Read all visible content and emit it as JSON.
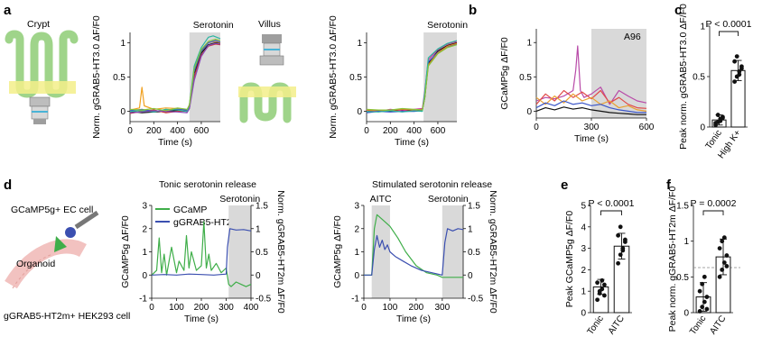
{
  "colors": {
    "ink": "#111111",
    "shade": "#d9d9d9",
    "gcamp": "#3fae49",
    "ggrab": "#3b4fb0",
    "band": "#f3ee8a",
    "tissue": "#9fd48a",
    "cell": "#8fd6cc",
    "dots": "#111111",
    "bars": "#ffffff"
  },
  "panels": {
    "a": {
      "letter": "a",
      "crypt_label": "Crypt",
      "villus_label": "Villus",
      "left": {
        "ylabel": "Norm. gGRAB5-HT3.0 ΔF/F0",
        "annotation": "Serotonin"
      },
      "right": {
        "ylabel": "Norm. gGRAB5-HT3.0 ΔF/F0",
        "annotation": "Serotonin"
      }
    },
    "b": {
      "letter": "b",
      "annotation": "A96"
    },
    "c": {
      "letter": "c",
      "pvalue": "P < 0.0001"
    },
    "d": {
      "letter": "d",
      "schematic": {
        "ec_cell": "GCaMP5g+ EC cell",
        "organoid": "Organoid",
        "hek": "gGRAB5-HT2m+ HEK293 cell"
      },
      "left_title": "Tonic serotonin release",
      "right_title": "Stimulated serotonin release",
      "legend": [
        "GCaMP",
        "gGRAB5-HT2m"
      ],
      "left_annotation": "Serotonin",
      "right_annotations": [
        "AITC",
        "Serotonin"
      ]
    },
    "e": {
      "letter": "e",
      "pvalue": "P < 0.0001"
    },
    "f": {
      "letter": "f",
      "pvalue": "P = 0.0002"
    }
  },
  "chart_data": [
    {
      "id": "a-left",
      "type": "line",
      "xlabel": "Time (s)",
      "ylabel": "Norm. gGRAB5-HT3.0 ΔF/F0",
      "xlim": [
        0,
        760
      ],
      "ylim": [
        -0.15,
        1.15
      ],
      "xticks": [
        0,
        200,
        400,
        600
      ],
      "yticks": [
        0,
        0.5,
        1.0
      ],
      "shade": [
        [
          500,
          760
        ]
      ],
      "annotation": "Serotonin",
      "series": [
        {
          "name": "cell 1",
          "color": "#111111",
          "x": [
            0,
            100,
            200,
            300,
            400,
            480,
            500,
            540,
            600,
            660,
            720,
            760
          ],
          "y": [
            0.0,
            -0.02,
            -0.01,
            0.0,
            0.01,
            0.0,
            0.05,
            0.55,
            0.85,
            0.97,
            1.0,
            0.99
          ]
        },
        {
          "name": "cell 2",
          "color": "#f0a020",
          "x": [
            0,
            80,
            100,
            120,
            200,
            300,
            400,
            480,
            500,
            540,
            600,
            660,
            720,
            760
          ],
          "y": [
            0.02,
            0.05,
            0.35,
            0.08,
            0.03,
            0.05,
            0.04,
            0.02,
            0.1,
            0.6,
            0.9,
            1.0,
            1.02,
            1.0
          ]
        },
        {
          "name": "cell 3",
          "color": "#cc3333",
          "x": [
            0,
            100,
            200,
            300,
            400,
            480,
            500,
            540,
            600,
            660,
            720,
            760
          ],
          "y": [
            -0.03,
            0.0,
            0.02,
            -0.02,
            0.0,
            0.01,
            0.08,
            0.5,
            0.82,
            0.95,
            0.98,
            0.97
          ]
        },
        {
          "name": "cell 4",
          "color": "#3a55c8",
          "x": [
            0,
            100,
            200,
            300,
            400,
            480,
            500,
            540,
            600,
            660,
            720,
            760
          ],
          "y": [
            0.01,
            0.03,
            0.0,
            0.02,
            0.03,
            0.02,
            0.06,
            0.58,
            0.88,
            1.0,
            1.03,
            1.01
          ]
        },
        {
          "name": "cell 5",
          "color": "#2bb5a0",
          "x": [
            0,
            100,
            200,
            300,
            400,
            480,
            500,
            540,
            600,
            660,
            700,
            760
          ],
          "y": [
            0.0,
            0.01,
            -0.01,
            0.03,
            0.02,
            0.0,
            0.1,
            0.66,
            0.93,
            1.08,
            1.1,
            1.06
          ]
        },
        {
          "name": "cell 6",
          "color": "#8a4bb8",
          "x": [
            0,
            100,
            200,
            300,
            400,
            480,
            500,
            540,
            600,
            660,
            720,
            760
          ],
          "y": [
            -0.02,
            -0.01,
            0.01,
            0.0,
            -0.01,
            -0.02,
            0.04,
            0.45,
            0.8,
            0.96,
            0.99,
            0.98
          ]
        },
        {
          "name": "cell 7",
          "color": "#88c43a",
          "x": [
            0,
            100,
            200,
            300,
            400,
            480,
            500,
            540,
            600,
            660,
            720,
            760
          ],
          "y": [
            0.03,
            0.02,
            0.04,
            0.01,
            0.05,
            0.03,
            0.09,
            0.62,
            0.9,
            1.02,
            1.05,
            1.03
          ]
        }
      ]
    },
    {
      "id": "a-right",
      "type": "line",
      "xlabel": "Time (s)",
      "ylabel": "Norm. gGRAB5-HT3.0 ΔF/F0",
      "xlim": [
        0,
        760
      ],
      "ylim": [
        -0.15,
        1.15
      ],
      "xticks": [
        0,
        200,
        400,
        600
      ],
      "yticks": [
        0,
        0.5,
        1.0
      ],
      "shade": [
        [
          480,
          760
        ]
      ],
      "annotation": "Serotonin",
      "series": [
        {
          "name": "cell 1",
          "color": "#111111",
          "x": [
            0,
            100,
            200,
            300,
            400,
            470,
            490,
            520,
            600,
            680,
            760
          ],
          "y": [
            0.0,
            0.01,
            0.0,
            0.02,
            0.01,
            0.02,
            0.2,
            0.7,
            0.88,
            0.96,
            1.0
          ]
        },
        {
          "name": "cell 2",
          "color": "#cc3399",
          "x": [
            0,
            100,
            200,
            300,
            400,
            470,
            490,
            520,
            600,
            680,
            760
          ],
          "y": [
            0.02,
            0.0,
            0.03,
            0.01,
            0.03,
            0.04,
            0.3,
            0.75,
            0.9,
            0.98,
            1.02
          ]
        },
        {
          "name": "cell 3",
          "color": "#3a55c8",
          "x": [
            0,
            100,
            200,
            300,
            400,
            470,
            490,
            520,
            600,
            680,
            760
          ],
          "y": [
            -0.02,
            0.0,
            -0.01,
            0.0,
            0.0,
            0.01,
            0.25,
            0.72,
            0.86,
            0.94,
            0.98
          ]
        },
        {
          "name": "cell 4",
          "color": "#e07a20",
          "x": [
            0,
            100,
            200,
            300,
            400,
            470,
            490,
            520,
            600,
            680,
            760
          ],
          "y": [
            0.01,
            0.02,
            0.01,
            0.03,
            0.02,
            0.03,
            0.22,
            0.68,
            0.85,
            0.95,
            0.99
          ]
        },
        {
          "name": "cell 5",
          "color": "#2bb5a0",
          "x": [
            0,
            100,
            200,
            300,
            400,
            470,
            490,
            520,
            600,
            680,
            760
          ],
          "y": [
            0.0,
            -0.01,
            0.01,
            -0.01,
            0.01,
            0.0,
            0.28,
            0.78,
            0.91,
            0.99,
            1.03
          ]
        },
        {
          "name": "cell 6",
          "color": "#88c43a",
          "x": [
            0,
            100,
            200,
            300,
            400,
            470,
            490,
            520,
            600,
            680,
            760
          ],
          "y": [
            0.03,
            0.02,
            0.02,
            0.04,
            0.03,
            0.02,
            0.2,
            0.66,
            0.84,
            0.93,
            0.97
          ]
        }
      ]
    },
    {
      "id": "b",
      "type": "line",
      "xlabel": "Time (s)",
      "ylabel": "GCaMP5g ΔF/F0",
      "xlim": [
        0,
        600
      ],
      "ylim": [
        -0.1,
        1.2
      ],
      "xticks": [
        0,
        300,
        600
      ],
      "yticks": [
        0,
        0.5,
        1.0
      ],
      "shade": [
        [
          300,
          600
        ]
      ],
      "annotation": "A96",
      "series": [
        {
          "name": "cell 1",
          "color": "#b84aa8",
          "x": [
            0,
            50,
            100,
            150,
            200,
            215,
            225,
            240,
            260,
            300,
            350,
            400,
            450,
            500,
            550,
            600
          ],
          "y": [
            0.15,
            0.2,
            0.18,
            0.22,
            0.3,
            0.6,
            0.95,
            0.3,
            0.2,
            0.25,
            0.35,
            0.1,
            0.3,
            0.22,
            0.15,
            0.12
          ]
        },
        {
          "name": "cell 2",
          "color": "#e04a4a",
          "x": [
            0,
            50,
            100,
            150,
            200,
            250,
            300,
            350,
            400,
            450,
            500,
            550,
            600
          ],
          "y": [
            0.1,
            0.25,
            0.15,
            0.3,
            0.2,
            0.28,
            0.18,
            0.3,
            0.12,
            0.2,
            0.1,
            0.05,
            0.04
          ]
        },
        {
          "name": "cell 3",
          "color": "#e8a030",
          "x": [
            0,
            50,
            100,
            150,
            200,
            250,
            300,
            350,
            400,
            450,
            500,
            550,
            600
          ],
          "y": [
            0.2,
            0.1,
            0.22,
            0.12,
            0.25,
            0.15,
            0.2,
            0.1,
            0.15,
            0.05,
            0.08,
            0.02,
            0.0
          ]
        },
        {
          "name": "cell 4",
          "color": "#3a55c8",
          "x": [
            0,
            50,
            100,
            150,
            200,
            250,
            300,
            350,
            400,
            450,
            500,
            550,
            600
          ],
          "y": [
            0.05,
            0.12,
            0.08,
            0.15,
            0.1,
            0.12,
            0.08,
            0.1,
            0.05,
            0.02,
            0.0,
            -0.02,
            -0.02
          ]
        },
        {
          "name": "cell 5",
          "color": "#111111",
          "x": [
            0,
            50,
            100,
            150,
            200,
            250,
            300,
            350,
            400,
            450,
            500,
            550,
            600
          ],
          "y": [
            0.0,
            0.05,
            0.02,
            0.06,
            0.03,
            0.05,
            0.02,
            0.0,
            -0.02,
            -0.03,
            -0.04,
            -0.05,
            -0.05
          ]
        }
      ]
    },
    {
      "id": "c",
      "type": "bar",
      "ylabel": "Peak norm. gGRAB5-HT3.0 ΔF/F0",
      "categories": [
        "Tonic",
        "High K+"
      ],
      "values": [
        0.07,
        0.56
      ],
      "errors": [
        0.05,
        0.1
      ],
      "ylim": [
        0,
        1.0
      ],
      "yticks": [
        0,
        0.5,
        1.0
      ],
      "points": [
        [
          0.02,
          0.05,
          0.08,
          0.1,
          0.04,
          0.12,
          0.06,
          0.09
        ],
        [
          0.45,
          0.5,
          0.55,
          0.6,
          0.65,
          0.7,
          0.52,
          0.58
        ]
      ],
      "pvalue": "P < 0.0001"
    },
    {
      "id": "d-left",
      "type": "line",
      "title": "Tonic serotonin release",
      "xlabel": "Time (s)",
      "ylabel": "GCaMP5g ΔF/F0",
      "y2label": "Norm. gGRAB5-HT2m ΔF/F0",
      "xlim": [
        0,
        400
      ],
      "ylim": [
        -1,
        3
      ],
      "y2lim": [
        -0.5,
        1.5
      ],
      "xticks": [
        0,
        100,
        200,
        300,
        400
      ],
      "yticks": [
        -1,
        0,
        1,
        2,
        3
      ],
      "y2ticks": [
        -0.5,
        0,
        0.5,
        1.0,
        1.5
      ],
      "shade": [
        [
          310,
          400
        ]
      ],
      "annotation": "Serotonin",
      "legend": [
        "GCaMP",
        "gGRAB5-HT2m"
      ],
      "series": [
        {
          "name": "GCaMP",
          "color": "#3fae49",
          "axis": "left",
          "x": [
            0,
            20,
            30,
            40,
            50,
            60,
            80,
            100,
            110,
            130,
            140,
            150,
            160,
            180,
            200,
            210,
            220,
            230,
            240,
            260,
            280,
            300,
            310,
            320,
            340,
            360,
            380,
            400
          ],
          "y": [
            0.0,
            0.2,
            1.6,
            0.1,
            0.9,
            0.0,
            1.2,
            0.1,
            0.6,
            0.2,
            1.7,
            0.3,
            1.0,
            0.2,
            0.4,
            2.3,
            0.3,
            0.9,
            0.2,
            0.5,
            0.1,
            0.3,
            -0.4,
            -0.5,
            -0.3,
            -0.4,
            -0.5,
            -0.4
          ]
        },
        {
          "name": "gGRAB5-HT2m",
          "color": "#3b4fb0",
          "axis": "right",
          "x": [
            0,
            50,
            100,
            150,
            200,
            250,
            300,
            305,
            315,
            340,
            370,
            400
          ],
          "y": [
            0.0,
            0.01,
            0.0,
            0.02,
            0.01,
            0.0,
            0.02,
            0.6,
            1.0,
            0.97,
            0.98,
            0.95
          ]
        }
      ]
    },
    {
      "id": "d-right",
      "type": "line",
      "title": "Stimulated serotonin release",
      "xlabel": "Time (s)",
      "ylabel": "GCaMP5g ΔF/F0",
      "y2label": "Norm. gGRAB5-HT2m ΔF/F0",
      "xlim": [
        0,
        380
      ],
      "ylim": [
        -1,
        3
      ],
      "y2lim": [
        -0.5,
        1.5
      ],
      "xticks": [
        0,
        100,
        200,
        300
      ],
      "yticks": [
        -1,
        0,
        1,
        2,
        3
      ],
      "y2ticks": [
        -0.5,
        0,
        0.5,
        1.0,
        1.5
      ],
      "shade": [
        [
          30,
          100
        ],
        [
          300,
          380
        ]
      ],
      "annotations": [
        "AITC",
        "Serotonin"
      ],
      "series": [
        {
          "name": "GCaMP",
          "color": "#3fae49",
          "axis": "left",
          "x": [
            0,
            30,
            40,
            50,
            70,
            100,
            130,
            160,
            200,
            240,
            280,
            300,
            340,
            380
          ],
          "y": [
            0.0,
            0.0,
            2.0,
            2.6,
            2.4,
            2.1,
            1.6,
            1.0,
            0.4,
            0.1,
            0.0,
            -0.1,
            -0.1,
            -0.1
          ]
        },
        {
          "name": "gGRAB5-HT2m",
          "color": "#3b4fb0",
          "axis": "right",
          "x": [
            0,
            30,
            40,
            50,
            60,
            70,
            80,
            90,
            100,
            120,
            150,
            180,
            220,
            260,
            300,
            310,
            320,
            340,
            360,
            380
          ],
          "y": [
            0.0,
            0.0,
            0.55,
            0.85,
            0.6,
            0.75,
            0.55,
            0.65,
            0.5,
            0.4,
            0.3,
            0.2,
            0.1,
            0.05,
            0.0,
            0.7,
            1.0,
            0.95,
            1.0,
            0.98
          ]
        }
      ]
    },
    {
      "id": "e",
      "type": "bar",
      "ylabel": "Peak GCaMP5g ΔF/F0",
      "categories": [
        "Tonic",
        "AITC"
      ],
      "values": [
        1.2,
        3.1
      ],
      "errors": [
        0.35,
        0.6
      ],
      "ylim": [
        0,
        5
      ],
      "yticks": [
        0,
        1,
        2,
        3,
        4,
        5
      ],
      "points": [
        [
          0.6,
          0.9,
          1.1,
          1.3,
          1.4,
          1.0,
          1.5,
          0.8
        ],
        [
          2.3,
          2.7,
          3.0,
          3.3,
          3.6,
          4.0,
          2.9,
          3.4
        ]
      ],
      "pvalue": "P < 0.0001"
    },
    {
      "id": "f",
      "type": "bar",
      "ylabel": "Peak norm. gGRAB5-HT2m ΔF/F0",
      "categories": [
        "Tonic",
        "AITC"
      ],
      "values": [
        0.22,
        0.78
      ],
      "errors": [
        0.2,
        0.25
      ],
      "ylim": [
        0,
        1.5
      ],
      "yticks": [
        0,
        0.5,
        1.0,
        1.5
      ],
      "dashed_line": 0.63,
      "points": [
        [
          0.02,
          0.08,
          0.15,
          0.22,
          0.3,
          0.4,
          0.5,
          0.05
        ],
        [
          0.5,
          0.6,
          0.7,
          0.8,
          0.9,
          1.0,
          1.05,
          0.65
        ]
      ],
      "pvalue": "P = 0.0002"
    }
  ]
}
